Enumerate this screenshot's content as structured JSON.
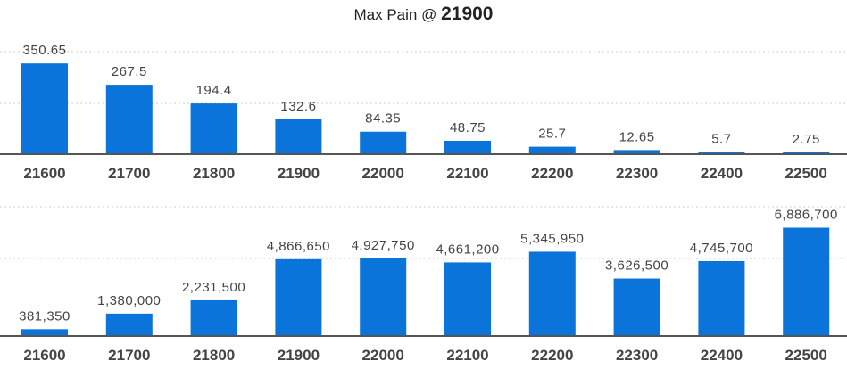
{
  "header": {
    "title_prefix": "Max Pain @",
    "title_value": "21900"
  },
  "colors": {
    "bar": "#0b74da",
    "axis": "#555555",
    "grid": "#cfcfcf"
  },
  "chart_data": [
    {
      "type": "bar",
      "categories": [
        "21600",
        "21700",
        "21800",
        "21900",
        "22000",
        "22100",
        "22200",
        "22300",
        "22400",
        "22500"
      ],
      "values": [
        350.65,
        267.5,
        194.4,
        132.6,
        84.35,
        48.75,
        25.7,
        12.65,
        5.7,
        2.75
      ],
      "labels": [
        "350.65",
        "267.5",
        "194.4",
        "132.6",
        "84.35",
        "48.75",
        "25.7",
        "12.65",
        "5.7",
        "2.75"
      ],
      "ylim": [
        0,
        400
      ],
      "grid": true
    },
    {
      "type": "bar",
      "categories": [
        "21600",
        "21700",
        "21800",
        "21900",
        "22000",
        "22100",
        "22200",
        "22300",
        "22400",
        "22500"
      ],
      "values": [
        381350,
        1380000,
        2231500,
        4866650,
        4927750,
        4661200,
        5345950,
        3626500,
        4745700,
        6886700
      ],
      "labels": [
        "381,350",
        "1,380,000",
        "2,231,500",
        "4,866,650",
        "4,927,750",
        "4,661,200",
        "5,345,950",
        "3,626,500",
        "4,745,700",
        "6,886,700"
      ],
      "ylim": [
        0,
        8000000
      ],
      "grid": true
    }
  ]
}
